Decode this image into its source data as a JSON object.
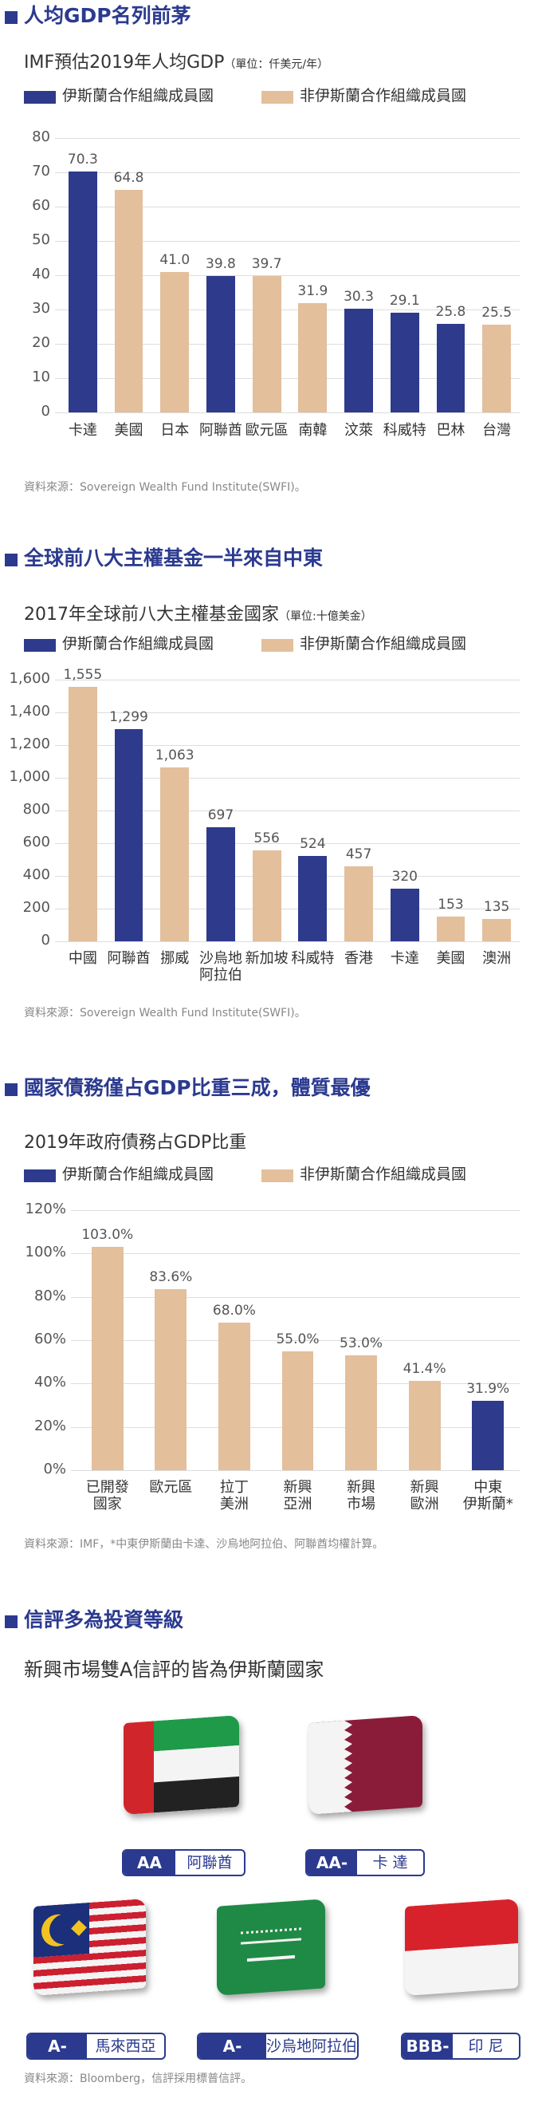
{
  "chart_data": [
    {
      "type": "bar",
      "heading": "人均GDP名列前茅",
      "title": "IMF預估2019年人均GDP",
      "unit": "（單位：仟美元/年）",
      "categories": [
        "卡達",
        "美國",
        "日本",
        "阿聯酋",
        "歐元區",
        "南韓",
        "汶萊",
        "科威特",
        "巴林",
        "台灣"
      ],
      "series": [
        {
          "name": "伊斯蘭合作組織成員國",
          "color": "#2e3a8c",
          "values": [
            70.3,
            null,
            null,
            39.8,
            null,
            null,
            30.3,
            29.1,
            25.8,
            null
          ],
          "value_labels": [
            "70.3",
            null,
            null,
            "39.8",
            null,
            null,
            "30.3",
            "29.1",
            "25.8",
            null
          ]
        },
        {
          "name": "非伊斯蘭合作組織成員國",
          "color": "#e3bf9c",
          "values": [
            null,
            64.8,
            41.0,
            null,
            39.7,
            31.9,
            null,
            null,
            null,
            25.5
          ],
          "value_labels": [
            null,
            "64.8",
            "41.0",
            null,
            "39.7",
            "31.9",
            null,
            null,
            null,
            "25.5"
          ]
        }
      ],
      "ylim": [
        0,
        80
      ],
      "yticks": [
        0,
        10,
        20,
        30,
        40,
        50,
        60,
        70,
        80
      ],
      "grid": true,
      "source": "資料來源：Sovereign Wealth Fund Institute(SWFI)。"
    },
    {
      "type": "bar",
      "heading": "全球前八大主權基金一半來自中東",
      "title": "2017年全球前八大主權基金國家",
      "unit": "（單位:十億美金）",
      "categories": [
        "中國",
        "阿聯酋",
        "挪威",
        "沙烏地\n阿拉伯",
        "新加坡",
        "科威特",
        "香港",
        "卡達",
        "美國",
        "澳洲"
      ],
      "series": [
        {
          "name": "伊斯蘭合作組織成員國",
          "color": "#2e3a8c",
          "values": [
            null,
            1299,
            null,
            697,
            null,
            524,
            null,
            320,
            null,
            null
          ],
          "value_labels": [
            null,
            "1,299",
            null,
            "697",
            null,
            "524",
            null,
            "320",
            null,
            null
          ]
        },
        {
          "name": "非伊斯蘭合作組織成員國",
          "color": "#e3bf9c",
          "values": [
            1555,
            null,
            1063,
            null,
            556,
            null,
            457,
            null,
            153,
            135
          ],
          "value_labels": [
            "1,555",
            null,
            "1,063",
            null,
            "556",
            null,
            "457",
            null,
            "153",
            "135"
          ]
        }
      ],
      "ylim": [
        0,
        1600
      ],
      "yticks": [
        0,
        200,
        400,
        600,
        800,
        {
          "value": 1000,
          "label": "1,000"
        },
        {
          "value": 1200,
          "label": "1,200"
        },
        {
          "value": 1400,
          "label": "1,400"
        },
        {
          "value": 1600,
          "label": "1,600"
        }
      ],
      "grid": true,
      "source": "資料來源：Sovereign Wealth Fund Institute(SWFI)。"
    },
    {
      "type": "bar",
      "heading": "國家債務僅占GDP比重三成，體質最優",
      "title": "2019年政府債務占GDP比重",
      "categories": [
        "已開發\n國家",
        "歐元區",
        "拉丁\n美洲",
        "新興\n亞洲",
        "新興\n市場",
        "新興\n歐洲",
        "中東\n伊斯蘭*"
      ],
      "series": [
        {
          "name": "伊斯蘭合作組織成員國",
          "color": "#2e3a8c",
          "values": [
            null,
            null,
            null,
            null,
            null,
            null,
            31.9
          ],
          "value_labels": [
            null,
            null,
            null,
            null,
            null,
            null,
            "31.9%"
          ]
        },
        {
          "name": "非伊斯蘭合作組織成員國",
          "color": "#e3bf9c",
          "values": [
            103.0,
            83.6,
            68.0,
            55.0,
            53.0,
            41.4,
            null
          ],
          "value_labels": [
            "103.0%",
            "83.6%",
            "68.0%",
            "55.0%",
            "53.0%",
            "41.4%",
            null
          ]
        }
      ],
      "ylim": [
        0,
        120
      ],
      "yticks": [
        {
          "value": 0,
          "label": "0%"
        },
        {
          "value": 20,
          "label": "20%"
        },
        {
          "value": 40,
          "label": "40%"
        },
        {
          "value": 60,
          "label": "60%"
        },
        {
          "value": 80,
          "label": "80%"
        },
        {
          "value": 100,
          "label": "100%"
        },
        {
          "value": 120,
          "label": "120%"
        }
      ],
      "grid": true,
      "source": "資料來源：IMF，*中東伊斯蘭由卡達、沙烏地阿拉伯、阿聯酋均權計算。"
    }
  ],
  "ratings": {
    "heading": "信評多為投資等級",
    "title": "新興市場雙A信評的皆為伊斯蘭國家",
    "items": [
      {
        "grade": "AA",
        "country": "阿聯酋"
      },
      {
        "grade": "AA-",
        "country": "卡 達"
      },
      {
        "grade": "A-",
        "country": "馬來西亞"
      },
      {
        "grade": "A-",
        "country": "沙烏地阿拉伯"
      },
      {
        "grade": "BBB-",
        "country": "印 尼"
      }
    ],
    "source": "資料來源：Bloomberg，信評採用標普信評。"
  }
}
